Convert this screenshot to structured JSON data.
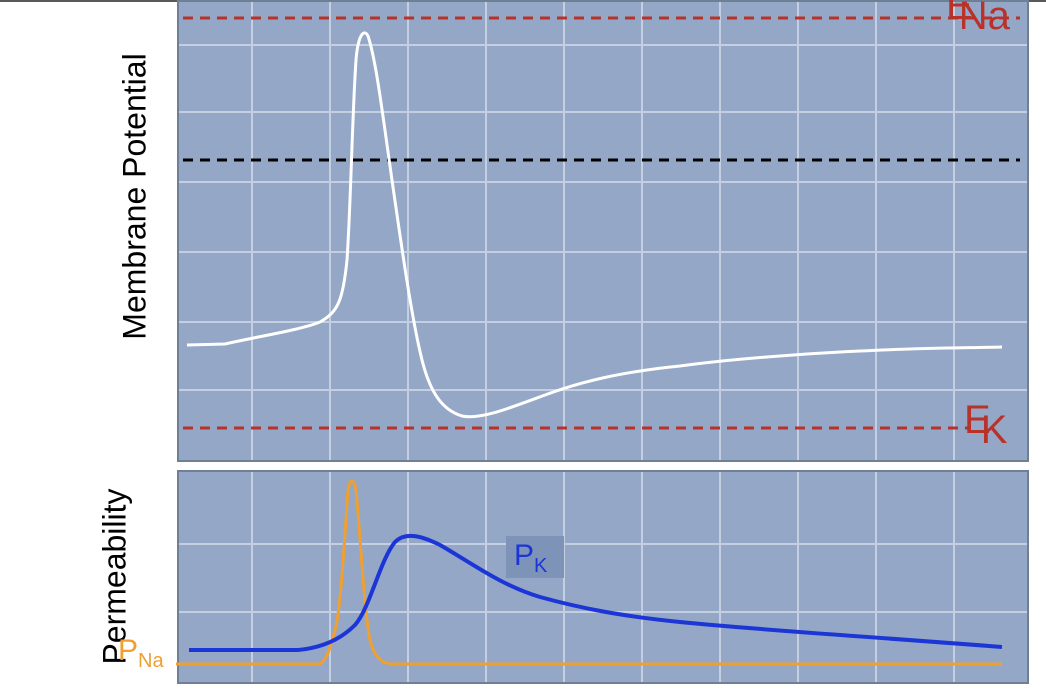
{
  "labels": {
    "membrane_potential": "Membrane Potential",
    "permeability": "Permeability",
    "e_na_base": "E",
    "e_na_sub": "Na",
    "e_k_base": "E",
    "e_k_sub": "K",
    "p_na_base": "P",
    "p_na_sub": "Na",
    "p_k_base": "P",
    "p_k_sub": "K"
  },
  "colors": {
    "panel": "#94a7c6",
    "grid": "#c4d0e2",
    "equilibrium_lines": "#b8322a",
    "threshold_line": "#000000",
    "membrane_trace": "#ffffff",
    "p_na": "#f0a030",
    "p_k": "#1c35d6"
  }
}
